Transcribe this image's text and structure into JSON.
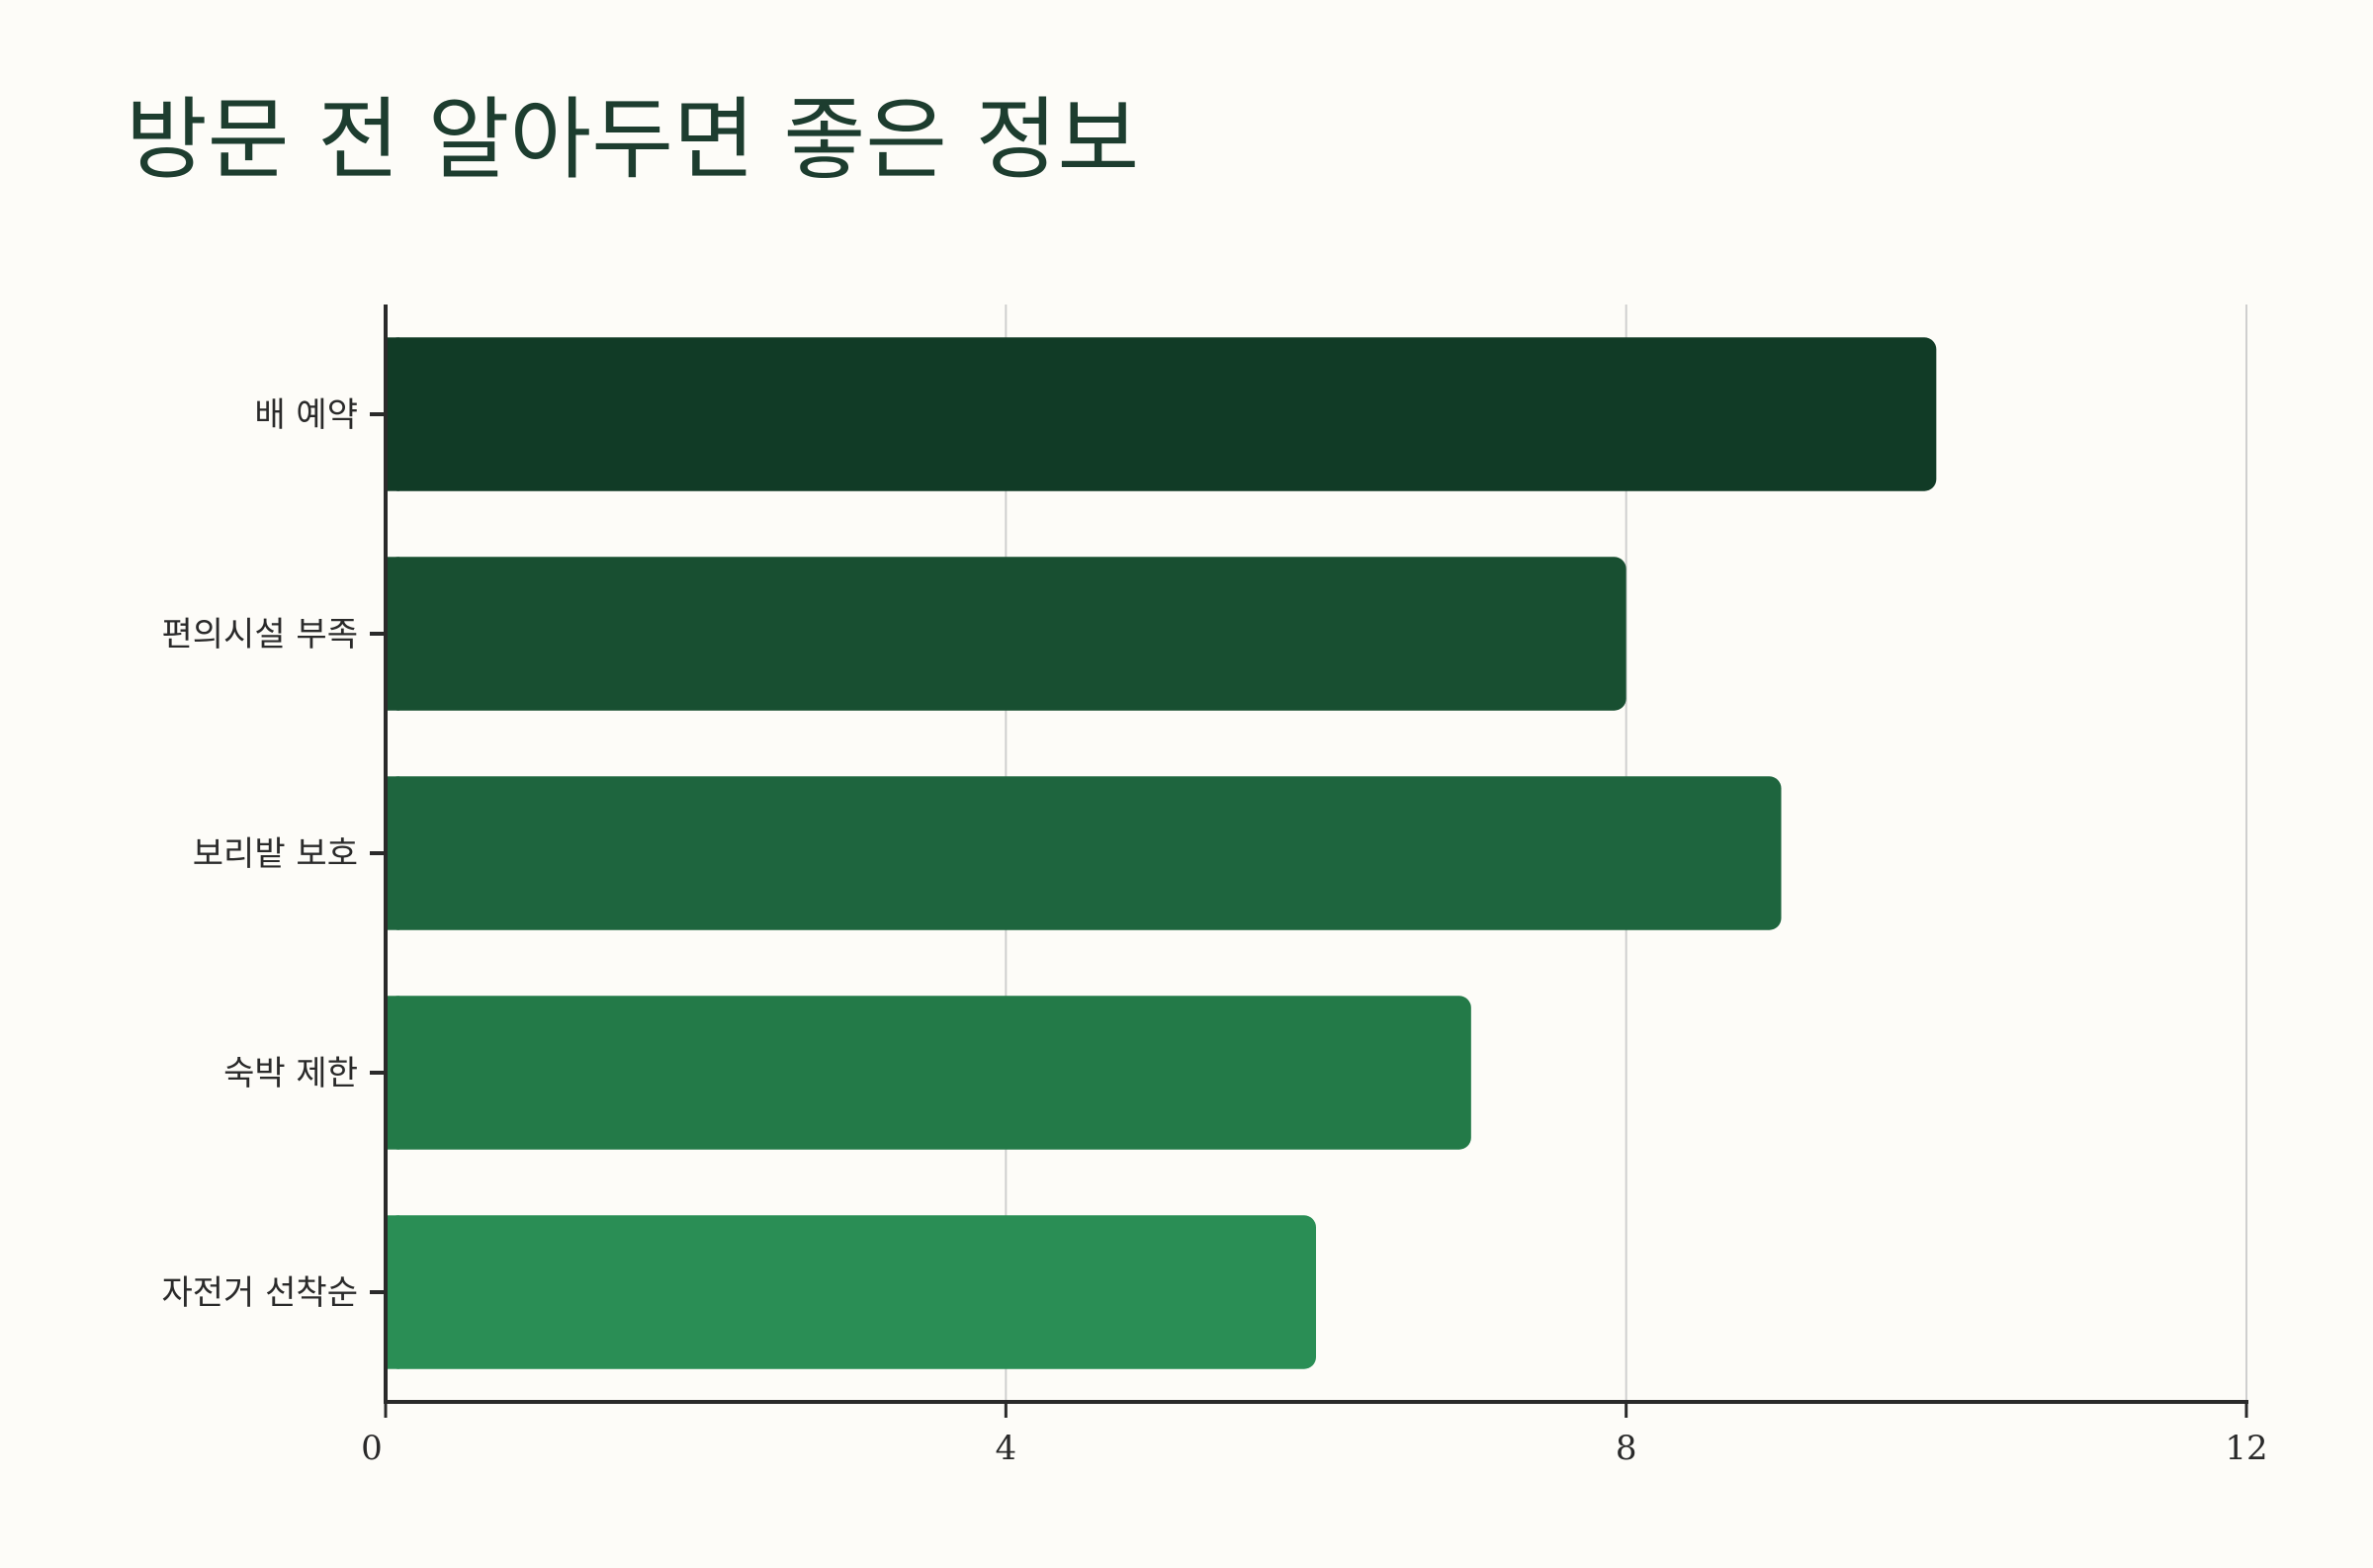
{
  "chart_data": {
    "type": "bar",
    "orientation": "horizontal",
    "title": "방문 전 알아두면 좋은 정보",
    "categories": [
      "배 예약",
      "편의시설 부족",
      "보리밭 보호",
      "숙박 제한",
      "자전거 선착순"
    ],
    "values": [
      10,
      8,
      9,
      7,
      6
    ],
    "xlim": [
      0,
      12
    ],
    "xticks": [
      0,
      4,
      8,
      12
    ],
    "xlabel": "",
    "ylabel": "",
    "grid": "vertical",
    "legend": "none",
    "colors": [
      "#113b26",
      "#184f31",
      "#1e653e",
      "#237a48",
      "#2a8e55"
    ],
    "axis_color": "#2a2a2a",
    "grid_color": "#cfcfcf"
  }
}
